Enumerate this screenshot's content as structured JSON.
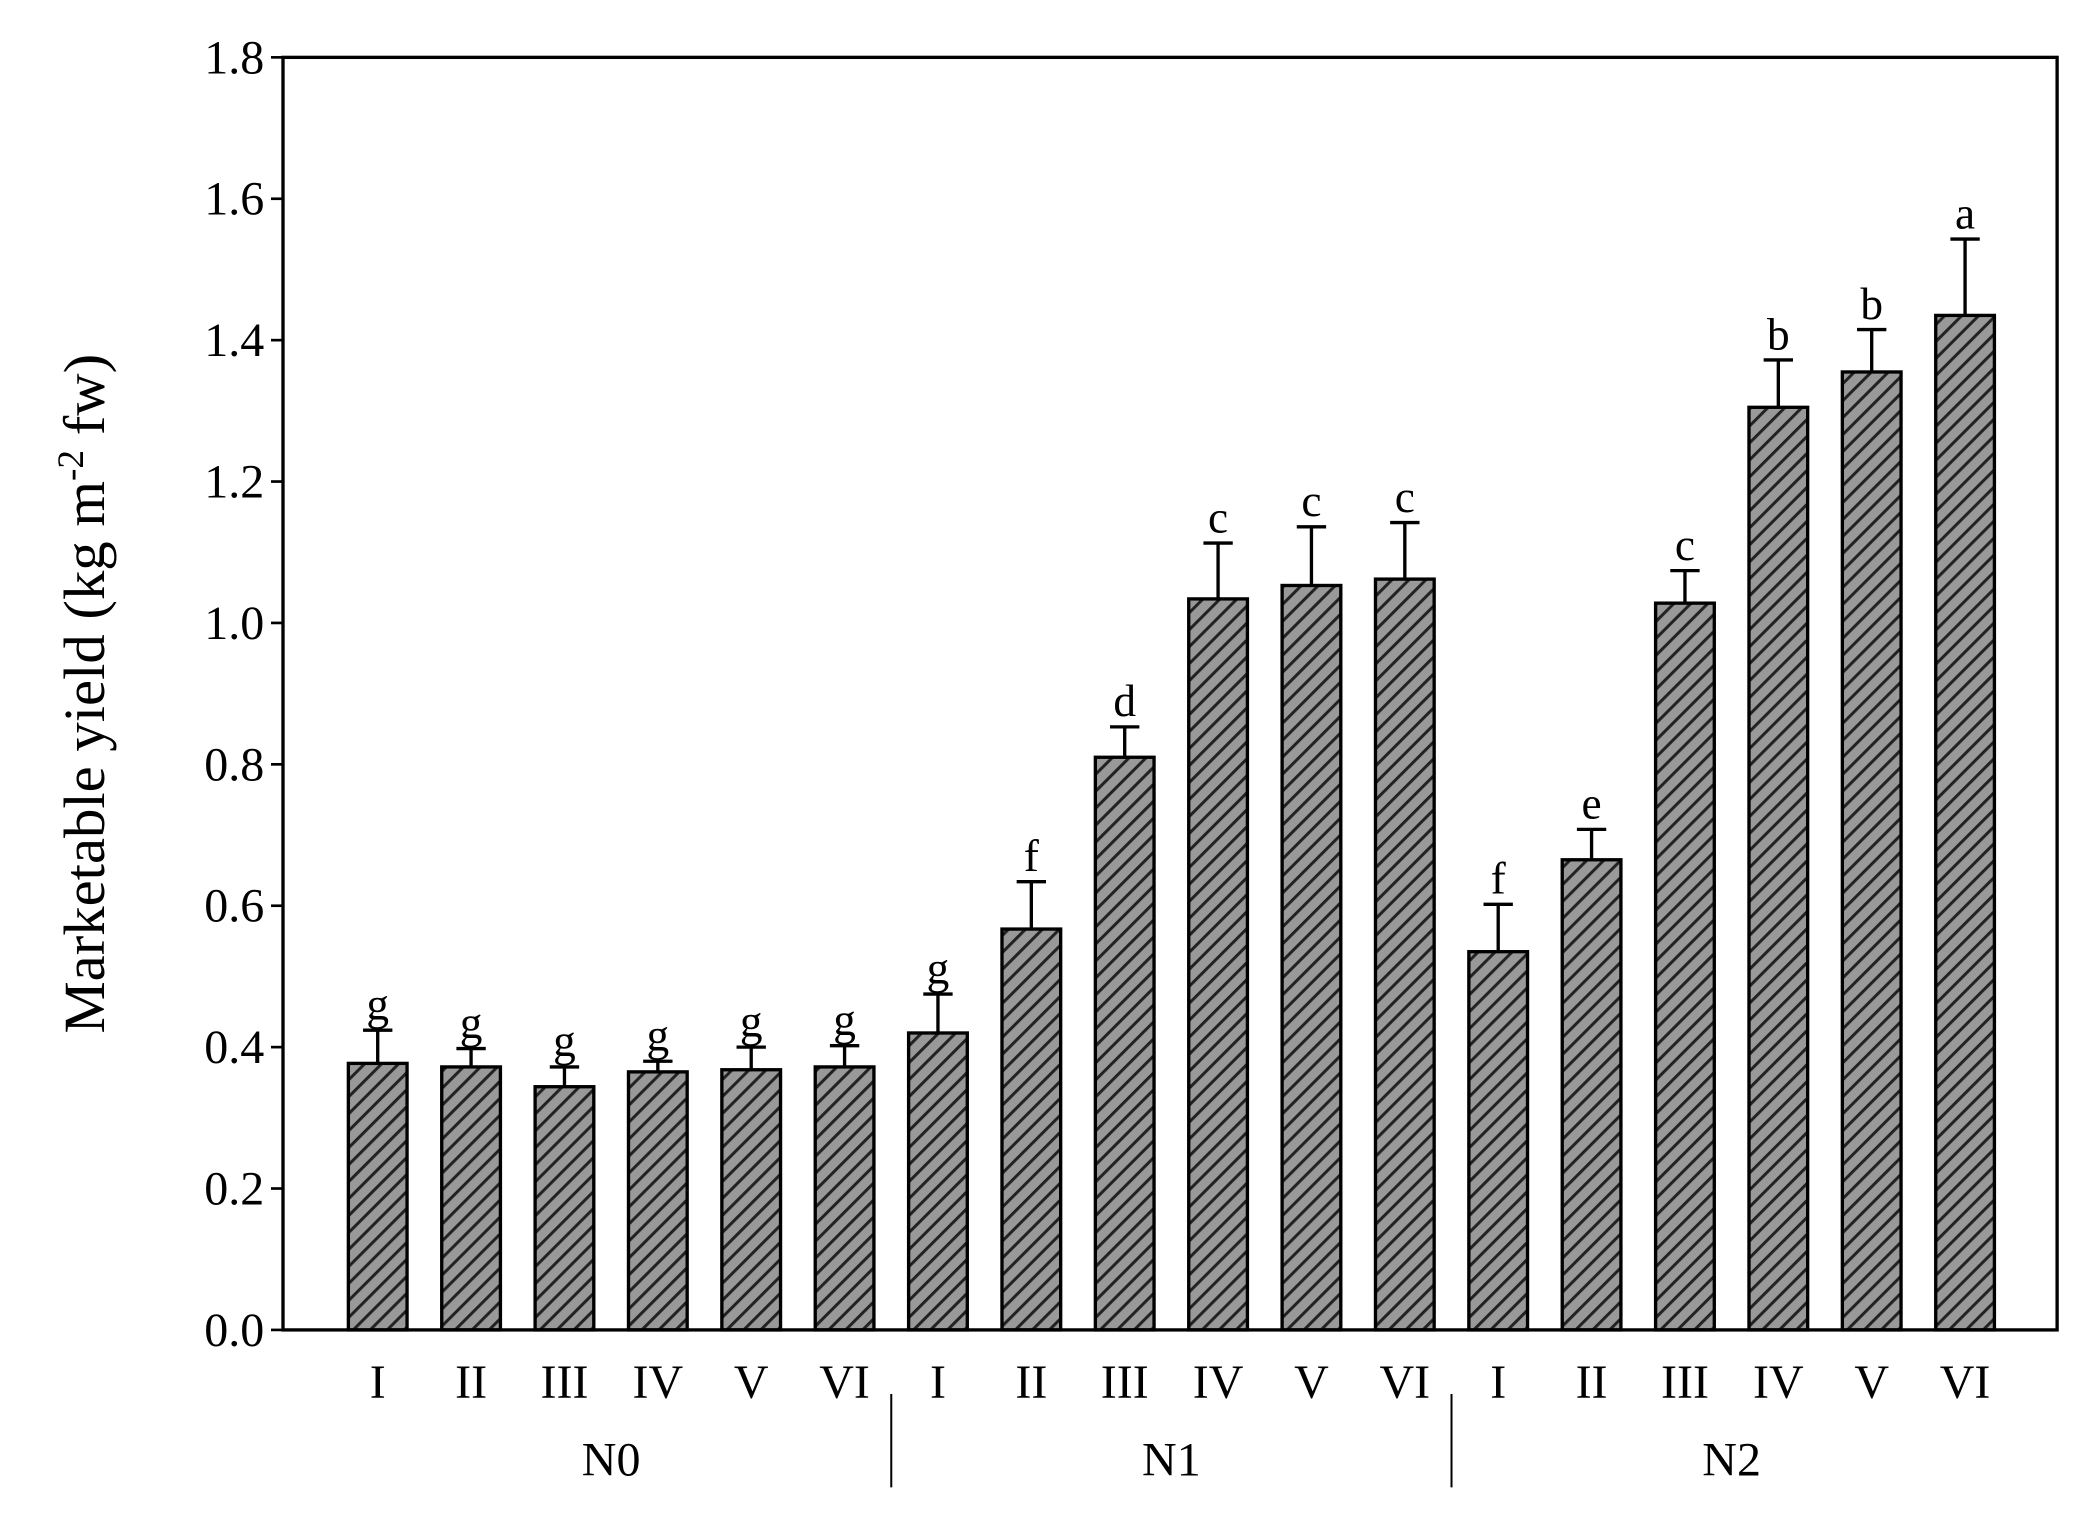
{
  "chart_data": {
    "type": "bar",
    "ylabel": {
      "before": "Marketable yield (kg m",
      "superscript": "-2",
      "after": " fw)"
    },
    "categories": [
      "I",
      "II",
      "III",
      "IV",
      "V",
      "VI",
      "I",
      "II",
      "III",
      "IV",
      "V",
      "VI",
      "I",
      "II",
      "III",
      "IV",
      "V",
      "VI"
    ],
    "groups": [
      "N0",
      "N1",
      "N2"
    ],
    "values": [
      0.377,
      0.372,
      0.344,
      0.365,
      0.368,
      0.372,
      0.42,
      0.567,
      0.81,
      1.034,
      1.053,
      1.062,
      0.535,
      0.665,
      1.028,
      1.305,
      1.355,
      1.435
    ],
    "errors": [
      0.047,
      0.026,
      0.028,
      0.015,
      0.032,
      0.03,
      0.055,
      0.067,
      0.043,
      0.079,
      0.083,
      0.08,
      0.067,
      0.043,
      0.046,
      0.067,
      0.06,
      0.108
    ],
    "annotations": [
      "g",
      "g",
      "g",
      "g",
      "g",
      "g",
      "g",
      "f",
      "d",
      "c",
      "c",
      "c",
      "f",
      "e",
      "c",
      "b",
      "b",
      "a"
    ],
    "color": "#999999",
    "hatch_color": "#222222",
    "ylim": [
      0,
      1.8
    ],
    "yticks": [
      {
        "value": 0,
        "label": "0.0"
      },
      0.2,
      0.4,
      0.6,
      0.8,
      {
        "value": 1,
        "label": "1.0"
      },
      1.2,
      1.4,
      1.6,
      1.8
    ]
  }
}
